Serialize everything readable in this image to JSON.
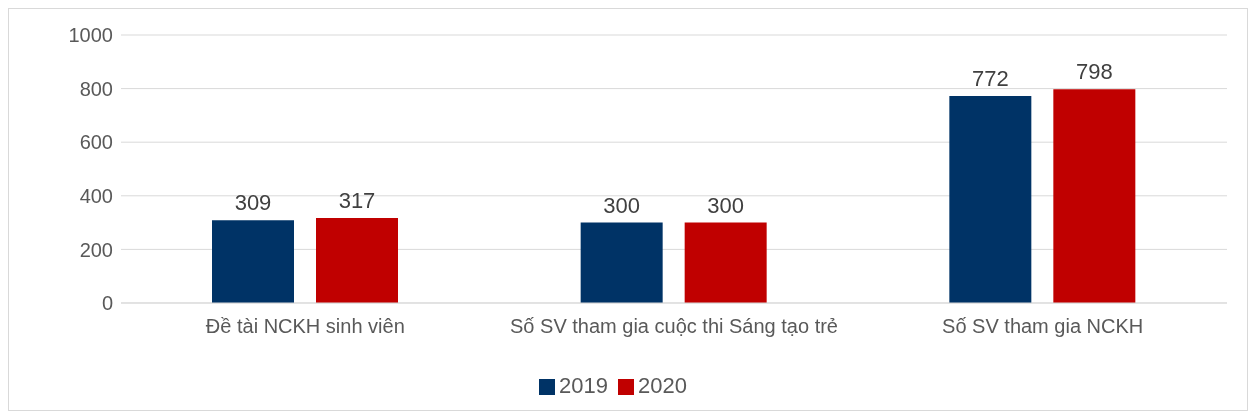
{
  "chart_data": {
    "type": "bar",
    "categories": [
      "Đề tài NCKH sinh viên",
      "Số SV tham gia cuộc thi Sáng tạo trẻ",
      "Số SV tham gia NCKH"
    ],
    "series": [
      {
        "name": "2019",
        "color": "#003366",
        "values": [
          309,
          300,
          772
        ]
      },
      {
        "name": "2020",
        "color": "#c00000",
        "values": [
          317,
          300,
          798
        ]
      }
    ],
    "ylim": [
      0,
      1000
    ],
    "yticks": [
      0,
      200,
      400,
      600,
      800,
      1000
    ],
    "grid": "y",
    "legend": "bottom",
    "data_labels": true
  }
}
